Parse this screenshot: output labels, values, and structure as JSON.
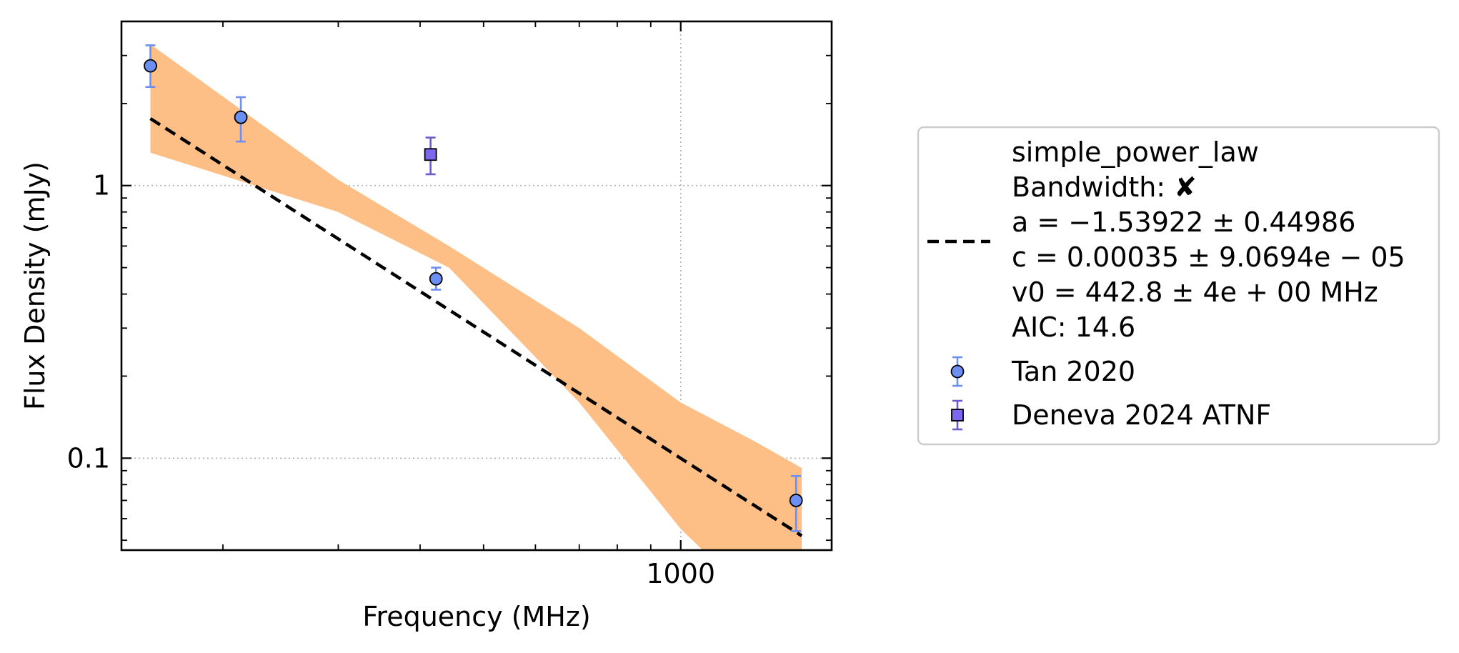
{
  "chart_data": {
    "type": "scatter",
    "xlabel": "Frequency (MHz)",
    "ylabel": "Flux Density (mJy)",
    "xscale": "log",
    "yscale": "log",
    "xlim": [
      140,
      1700
    ],
    "ylim": [
      0.046,
      4.0
    ],
    "x_ticks": [
      {
        "value": 1000,
        "label": "1000"
      }
    ],
    "y_ticks": [
      {
        "value": 1,
        "label": "1"
      },
      {
        "value": 0.1,
        "label": "0.1"
      }
    ],
    "grid": true,
    "legend_position": "outside right",
    "series": [
      {
        "name": "Tan 2020",
        "marker": "circle",
        "color": "#6b8ff2",
        "errorbar_color": "#6b8ff2",
        "x": [
          155,
          213,
          423,
          1500
        ],
        "y": [
          2.75,
          1.78,
          0.455,
          0.07
        ],
        "yerr_low": [
          0.45,
          0.33,
          0.04,
          0.016
        ],
        "yerr_high": [
          0.52,
          0.33,
          0.045,
          0.016
        ]
      },
      {
        "name": "Deneva 2024 ATNF",
        "marker": "square",
        "color": "#7b68ee",
        "errorbar_color": "#6a5acd",
        "x": [
          415
        ],
        "y": [
          1.3
        ],
        "yerr_low": [
          0.2
        ],
        "yerr_high": [
          0.2
        ]
      }
    ],
    "fit": {
      "name": "simple_power_law",
      "style": "dashed",
      "color": "#000000",
      "model": "c * (x / v0)^a",
      "a": -1.53922,
      "c": 0.00035,
      "v0": 442.8,
      "x_range": [
        155,
        1530
      ],
      "band_color": "#fdbf85",
      "band": {
        "x": [
          155,
          300,
          442.8,
          700,
          1000,
          1300,
          1530
        ],
        "upper": [
          3.3,
          1.05,
          0.6,
          0.3,
          0.16,
          0.115,
          0.092
        ],
        "lower": [
          1.32,
          0.8,
          0.5,
          0.16,
          0.055,
          0.03,
          0.02
        ]
      }
    },
    "legend": {
      "fit_lines": [
        "simple_power_law",
        "Bandwidth: ✘",
        "a = −1.53922 ± 0.44986",
        "c = 0.00035 ± 9.0694e − 05",
        "v0 = 442.8 ± 4e + 00 MHz",
        "AIC: 14.6"
      ],
      "series_labels": [
        "Tan 2020",
        "Deneva 2024 ATNF"
      ]
    }
  }
}
